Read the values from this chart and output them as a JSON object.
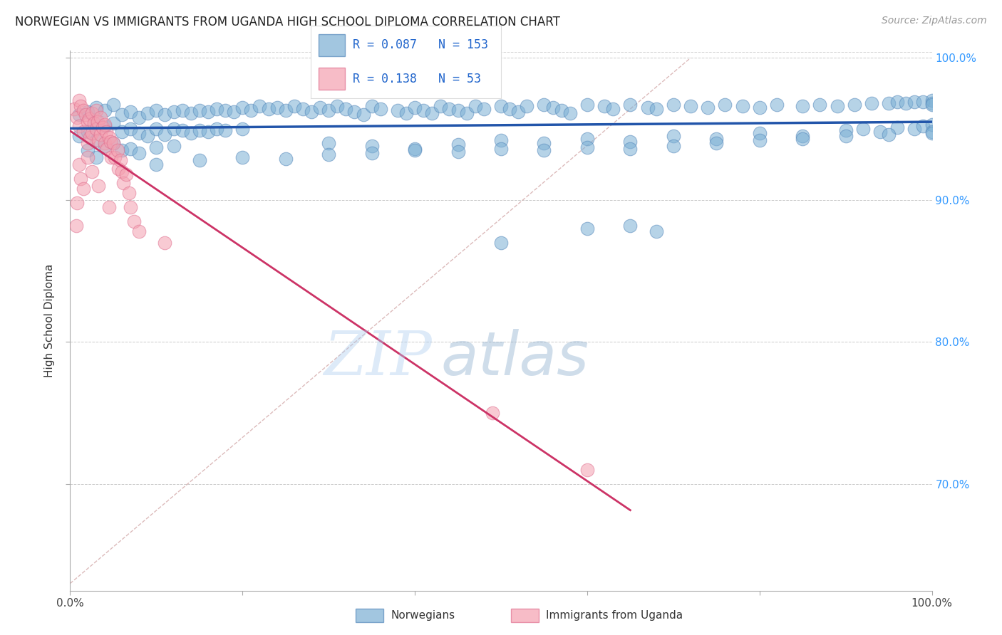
{
  "title": "NORWEGIAN VS IMMIGRANTS FROM UGANDA HIGH SCHOOL DIPLOMA CORRELATION CHART",
  "source": "Source: ZipAtlas.com",
  "ylabel": "High School Diploma",
  "x_min": 0.0,
  "x_max": 1.0,
  "y_min": 0.625,
  "y_max": 1.005,
  "r_norwegian": 0.087,
  "n_norwegian": 153,
  "r_uganda": 0.138,
  "n_uganda": 53,
  "blue_color": "#7BAFD4",
  "blue_edge_color": "#5588BB",
  "blue_line_color": "#2255AA",
  "pink_color": "#F4A0B0",
  "pink_edge_color": "#E07090",
  "pink_line_color": "#CC3366",
  "diag_color": "#D4AAAA",
  "legend_label_norwegian": "Norwegians",
  "legend_label_uganda": "Immigrants from Uganda",
  "watermark_text": "ZIPatlas",
  "blue_scatter_x": [
    0.01,
    0.01,
    0.02,
    0.02,
    0.02,
    0.03,
    0.03,
    0.03,
    0.03,
    0.04,
    0.04,
    0.04,
    0.05,
    0.05,
    0.05,
    0.06,
    0.06,
    0.06,
    0.07,
    0.07,
    0.07,
    0.08,
    0.08,
    0.08,
    0.09,
    0.09,
    0.1,
    0.1,
    0.1,
    0.11,
    0.11,
    0.12,
    0.12,
    0.12,
    0.13,
    0.13,
    0.14,
    0.14,
    0.15,
    0.15,
    0.16,
    0.16,
    0.17,
    0.17,
    0.18,
    0.18,
    0.19,
    0.2,
    0.2,
    0.21,
    0.22,
    0.23,
    0.24,
    0.25,
    0.26,
    0.27,
    0.28,
    0.29,
    0.3,
    0.31,
    0.32,
    0.33,
    0.34,
    0.35,
    0.36,
    0.38,
    0.39,
    0.4,
    0.41,
    0.42,
    0.43,
    0.44,
    0.45,
    0.46,
    0.47,
    0.48,
    0.5,
    0.51,
    0.52,
    0.53,
    0.55,
    0.56,
    0.57,
    0.58,
    0.6,
    0.62,
    0.63,
    0.65,
    0.67,
    0.68,
    0.7,
    0.72,
    0.74,
    0.76,
    0.78,
    0.8,
    0.82,
    0.85,
    0.87,
    0.89,
    0.91,
    0.93,
    0.95,
    0.96,
    0.97,
    0.98,
    0.99,
    1.0,
    1.0,
    1.0,
    0.3,
    0.35,
    0.4,
    0.45,
    0.5,
    0.55,
    0.6,
    0.65,
    0.7,
    0.75,
    0.8,
    0.85,
    0.9,
    0.92,
    0.94,
    0.96,
    0.98,
    0.99,
    1.0,
    1.0,
    0.1,
    0.15,
    0.2,
    0.25,
    0.3,
    0.35,
    0.4,
    0.45,
    0.5,
    0.55,
    0.6,
    0.65,
    0.7,
    0.75,
    0.8,
    0.85,
    0.9,
    0.95,
    1.0,
    0.5,
    0.6,
    0.65,
    0.68
  ],
  "blue_scatter_y": [
    0.96,
    0.945,
    0.962,
    0.948,
    0.935,
    0.965,
    0.955,
    0.942,
    0.93,
    0.963,
    0.952,
    0.938,
    0.967,
    0.954,
    0.94,
    0.96,
    0.948,
    0.935,
    0.962,
    0.95,
    0.936,
    0.958,
    0.947,
    0.933,
    0.961,
    0.945,
    0.963,
    0.95,
    0.937,
    0.96,
    0.946,
    0.962,
    0.95,
    0.938,
    0.963,
    0.949,
    0.961,
    0.947,
    0.963,
    0.949,
    0.962,
    0.948,
    0.964,
    0.95,
    0.963,
    0.949,
    0.962,
    0.965,
    0.95,
    0.963,
    0.966,
    0.964,
    0.965,
    0.963,
    0.966,
    0.964,
    0.962,
    0.965,
    0.963,
    0.966,
    0.964,
    0.962,
    0.96,
    0.966,
    0.964,
    0.963,
    0.961,
    0.965,
    0.963,
    0.961,
    0.966,
    0.964,
    0.963,
    0.961,
    0.966,
    0.964,
    0.966,
    0.964,
    0.962,
    0.966,
    0.967,
    0.965,
    0.963,
    0.961,
    0.967,
    0.966,
    0.964,
    0.967,
    0.965,
    0.964,
    0.967,
    0.966,
    0.965,
    0.967,
    0.966,
    0.965,
    0.967,
    0.966,
    0.967,
    0.966,
    0.967,
    0.968,
    0.968,
    0.969,
    0.968,
    0.969,
    0.969,
    0.97,
    0.968,
    0.967,
    0.94,
    0.938,
    0.936,
    0.939,
    0.942,
    0.94,
    0.943,
    0.941,
    0.945,
    0.943,
    0.947,
    0.945,
    0.949,
    0.95,
    0.948,
    0.951,
    0.95,
    0.952,
    0.953,
    0.948,
    0.925,
    0.928,
    0.93,
    0.929,
    0.932,
    0.933,
    0.935,
    0.934,
    0.936,
    0.935,
    0.937,
    0.936,
    0.938,
    0.94,
    0.942,
    0.943,
    0.945,
    0.946,
    0.947,
    0.87,
    0.88,
    0.882,
    0.878
  ],
  "pink_scatter_x": [
    0.005,
    0.008,
    0.01,
    0.01,
    0.012,
    0.015,
    0.015,
    0.018,
    0.02,
    0.02,
    0.022,
    0.023,
    0.025,
    0.025,
    0.028,
    0.03,
    0.03,
    0.032,
    0.033,
    0.035,
    0.035,
    0.038,
    0.04,
    0.04,
    0.042,
    0.043,
    0.045,
    0.047,
    0.048,
    0.05,
    0.052,
    0.055,
    0.056,
    0.058,
    0.06,
    0.062,
    0.065,
    0.068,
    0.07,
    0.074,
    0.08,
    0.01,
    0.012,
    0.015,
    0.008,
    0.02,
    0.025,
    0.007,
    0.033,
    0.045,
    0.11,
    0.49,
    0.6
  ],
  "pink_scatter_y": [
    0.964,
    0.958,
    0.97,
    0.952,
    0.966,
    0.963,
    0.948,
    0.96,
    0.955,
    0.94,
    0.957,
    0.944,
    0.961,
    0.947,
    0.954,
    0.963,
    0.95,
    0.955,
    0.942,
    0.958,
    0.946,
    0.951,
    0.953,
    0.94,
    0.948,
    0.936,
    0.944,
    0.941,
    0.93,
    0.94,
    0.93,
    0.935,
    0.922,
    0.928,
    0.92,
    0.912,
    0.918,
    0.905,
    0.895,
    0.885,
    0.878,
    0.925,
    0.915,
    0.908,
    0.898,
    0.93,
    0.92,
    0.882,
    0.91,
    0.895,
    0.87,
    0.75,
    0.71
  ]
}
